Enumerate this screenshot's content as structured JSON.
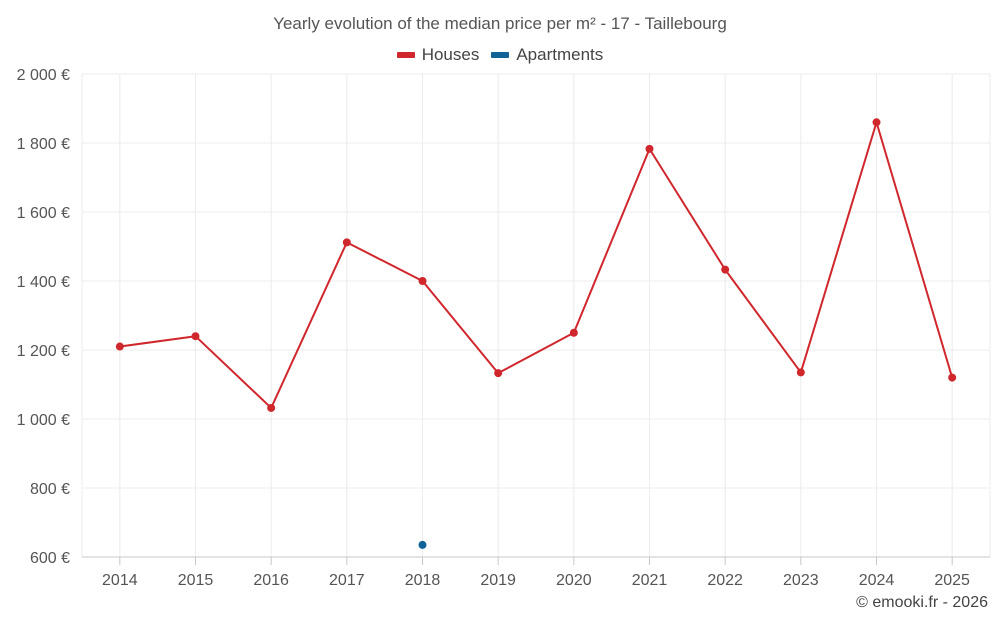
{
  "chart_data": {
    "type": "line",
    "title": "Yearly evolution of the median price per m² - 17 - Taillebourg",
    "categories": [
      "2014",
      "2015",
      "2016",
      "2017",
      "2018",
      "2019",
      "2020",
      "2021",
      "2022",
      "2023",
      "2024",
      "2025"
    ],
    "y_ticks": [
      "600 €",
      "800 €",
      "1 000 €",
      "1 200 €",
      "1 400 €",
      "1 600 €",
      "1 800 €",
      "2 000 €"
    ],
    "ylim": [
      600,
      2000
    ],
    "grid": true,
    "legend_position": "top-center",
    "series": [
      {
        "name": "Houses",
        "color": "#d0272d",
        "values": [
          1210,
          1240,
          1032,
          1512,
          1400,
          1133,
          1250,
          1783,
          1433,
          1135,
          1860,
          1120
        ]
      },
      {
        "name": "Apartments",
        "color": "#106396",
        "values": [
          null,
          null,
          null,
          null,
          635,
          null,
          null,
          null,
          null,
          null,
          null,
          null
        ]
      }
    ]
  },
  "credit": "© emooki.fr - 2026"
}
